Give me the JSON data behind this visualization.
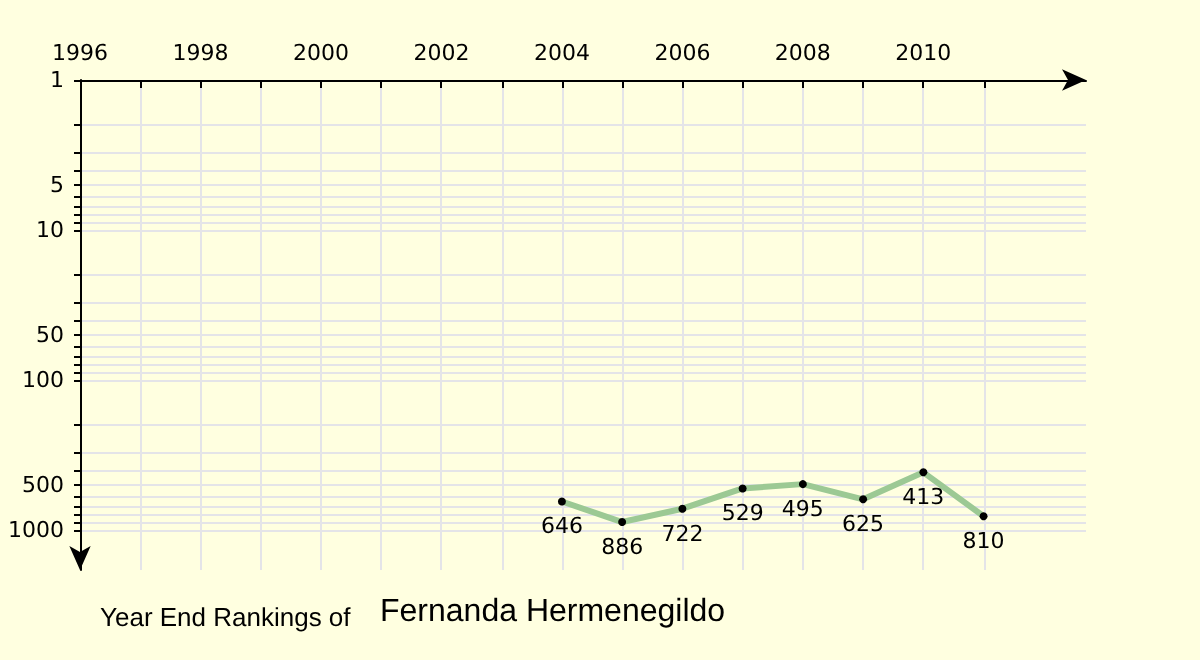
{
  "chart_data": {
    "type": "line",
    "title": "Year End Rankings of",
    "subtitle": "Fernanda Hermenegildo",
    "x": [
      2004,
      2005,
      2006,
      2007,
      2008,
      2009,
      2010,
      2011
    ],
    "series": [
      {
        "color": "#9cc994",
        "values": [
          646,
          886,
          722,
          529,
          495,
          625,
          413,
          810
        ]
      }
    ],
    "data_labels": true,
    "marker": "circle",
    "line_style": "solid",
    "log": "y",
    "grid": true,
    "xlim": [
      1996,
      2012.7
    ],
    "xticks": [
      1996,
      {
        "value": 1997,
        "label": null
      },
      1998,
      {
        "value": 1999,
        "label": null
      },
      2000,
      {
        "value": 2001,
        "label": null
      },
      2002,
      {
        "value": 2003,
        "label": null
      },
      2004,
      {
        "value": 2005,
        "label": null
      },
      2006,
      {
        "value": 2007,
        "label": null
      },
      2008,
      {
        "value": 2009,
        "label": null
      },
      2010,
      {
        "value": 2011,
        "label": null
      }
    ],
    "ylim": [
      1850,
      1
    ],
    "yticks": [
      1,
      {
        "value": 2,
        "label": null
      },
      {
        "value": 3,
        "label": null
      },
      {
        "value": 4,
        "label": null
      },
      5,
      {
        "value": 6,
        "label": null
      },
      {
        "value": 7,
        "label": null
      },
      {
        "value": 8,
        "label": null
      },
      {
        "value": 9,
        "label": null
      },
      10,
      {
        "value": 20,
        "label": null
      },
      {
        "value": 30,
        "label": null
      },
      {
        "value": 40,
        "label": null
      },
      50,
      {
        "value": 60,
        "label": null
      },
      {
        "value": 70,
        "label": null
      },
      {
        "value": 80,
        "label": null
      },
      {
        "value": 90,
        "label": null
      },
      100,
      {
        "value": 200,
        "label": null
      },
      {
        "value": 300,
        "label": null
      },
      {
        "value": 400,
        "label": null
      },
      500,
      {
        "value": 600,
        "label": null
      },
      {
        "value": 700,
        "label": null
      },
      {
        "value": 800,
        "label": null
      },
      {
        "value": 900,
        "label": null
      },
      1000
    ]
  }
}
